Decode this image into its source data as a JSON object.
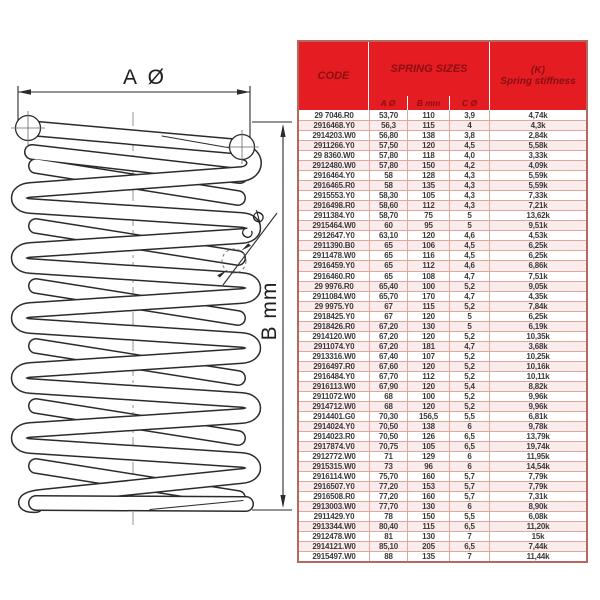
{
  "colors": {
    "header_red": "#e51c21",
    "header_text_maroon": "#8a0f12",
    "table_border": "#b4685f",
    "row_stripe_pink": "#fbecec",
    "grid_line_pink": "#dfa79f",
    "line_color": "#2b2b2b"
  },
  "diagram": {
    "a_label": "A Ø",
    "b_label": "B mm",
    "c_label": "C Ø"
  },
  "table": {
    "header": {
      "code": "CODE",
      "sizes": "SPRING SIZES",
      "stiffness_line1": "(K)",
      "stiffness_line2": "Spring stiffness"
    },
    "subheader": {
      "a": "A Ø",
      "b": "B mm",
      "c": "C Ø"
    },
    "rows": [
      {
        "code": "29 7046.R0",
        "a": "53,70",
        "b": "110",
        "c": "3,9",
        "k": "4,74k"
      },
      {
        "code": "2916468.Y0",
        "a": "56,3",
        "b": "115",
        "c": "4",
        "k": "4,3k"
      },
      {
        "code": "2914203.W0",
        "a": "56,80",
        "b": "138",
        "c": "3,8",
        "k": "2,84k"
      },
      {
        "code": "2911266.Y0",
        "a": "57,50",
        "b": "120",
        "c": "4,5",
        "k": "5,58k"
      },
      {
        "code": "29 8360.W0",
        "a": "57,80",
        "b": "118",
        "c": "4,0",
        "k": "3,33k"
      },
      {
        "code": "2912480.W0",
        "a": "57,80",
        "b": "150",
        "c": "4,2",
        "k": "4,09k"
      },
      {
        "code": "2916464.Y0",
        "a": "58",
        "b": "128",
        "c": "4,3",
        "k": "5,59k"
      },
      {
        "code": "2916465.R0",
        "a": "58",
        "b": "135",
        "c": "4,3",
        "k": "5,59k"
      },
      {
        "code": "2915553.Y0",
        "a": "58,30",
        "b": "105",
        "c": "4,3",
        "k": "7,33k"
      },
      {
        "code": "2916498.R0",
        "a": "58,60",
        "b": "112",
        "c": "4,3",
        "k": "7,21k"
      },
      {
        "code": "2911384.Y0",
        "a": "58,70",
        "b": "75",
        "c": "5",
        "k": "13,62k"
      },
      {
        "code": "2915464.W0",
        "a": "60",
        "b": "95",
        "c": "5",
        "k": "9,51k"
      },
      {
        "code": "2912647.Y0",
        "a": "63,10",
        "b": "120",
        "c": "4,6",
        "k": "4,53k"
      },
      {
        "code": "2911390.B0",
        "a": "65",
        "b": "106",
        "c": "4,5",
        "k": "6,25k"
      },
      {
        "code": "2911478.W0",
        "a": "65",
        "b": "116",
        "c": "4,5",
        "k": "6,25k"
      },
      {
        "code": "2916459.Y0",
        "a": "65",
        "b": "112",
        "c": "4,6",
        "k": "6,86k"
      },
      {
        "code": "2916460.R0",
        "a": "65",
        "b": "108",
        "c": "4,7",
        "k": "7,51k"
      },
      {
        "code": "29 9976.R0",
        "a": "65,40",
        "b": "100",
        "c": "5,2",
        "k": "9,05k"
      },
      {
        "code": "2911084.W0",
        "a": "65,70",
        "b": "170",
        "c": "4,7",
        "k": "4,35k"
      },
      {
        "code": "29 9975.Y0",
        "a": "67",
        "b": "115",
        "c": "5,2",
        "k": "7,84k"
      },
      {
        "code": "2918425.Y0",
        "a": "67",
        "b": "120",
        "c": "5",
        "k": "6,25k"
      },
      {
        "code": "2918426.R0",
        "a": "67,20",
        "b": "130",
        "c": "5",
        "k": "6,19k"
      },
      {
        "code": "2914120.W0",
        "a": "67,20",
        "b": "120",
        "c": "5,2",
        "k": "10,35k"
      },
      {
        "code": "2911074.Y0",
        "a": "67,20",
        "b": "181",
        "c": "4,7",
        "k": "3,68k"
      },
      {
        "code": "2913316.W0",
        "a": "67,40",
        "b": "107",
        "c": "5,2",
        "k": "10,25k"
      },
      {
        "code": "2916497.R0",
        "a": "67,60",
        "b": "120",
        "c": "5,2",
        "k": "10,16k"
      },
      {
        "code": "2916484.Y0",
        "a": "67,70",
        "b": "112",
        "c": "5,2",
        "k": "10,11k"
      },
      {
        "code": "2916113.W0",
        "a": "67,90",
        "b": "120",
        "c": "5,4",
        "k": "8,82k"
      },
      {
        "code": "2911072.W0",
        "a": "68",
        "b": "100",
        "c": "5,2",
        "k": "9,96k"
      },
      {
        "code": "2914712.W0",
        "a": "68",
        "b": "120",
        "c": "5,2",
        "k": "9,96k"
      },
      {
        "code": "2914401.G0",
        "a": "70,30",
        "b": "156,5",
        "c": "5,5",
        "k": "6,81k"
      },
      {
        "code": "2914024.Y0",
        "a": "70,50",
        "b": "138",
        "c": "6",
        "k": "9,78k"
      },
      {
        "code": "2914023.R0",
        "a": "70,50",
        "b": "126",
        "c": "6,5",
        "k": "13,79k"
      },
      {
        "code": "2917874.V0",
        "a": "70,75",
        "b": "105",
        "c": "6,5",
        "k": "19,74k"
      },
      {
        "code": "2912772.W0",
        "a": "71",
        "b": "129",
        "c": "6",
        "k": "11,95k"
      },
      {
        "code": "2915315.W0",
        "a": "73",
        "b": "96",
        "c": "6",
        "k": "14,54k"
      },
      {
        "code": "2916114.W0",
        "a": "75,70",
        "b": "160",
        "c": "5,7",
        "k": "7,79k"
      },
      {
        "code": "2916507.Y0",
        "a": "77,20",
        "b": "153",
        "c": "5,7",
        "k": "7,79k"
      },
      {
        "code": "2916508.R0",
        "a": "77,20",
        "b": "160",
        "c": "5,7",
        "k": "7,31k"
      },
      {
        "code": "2913003.W0",
        "a": "77,70",
        "b": "130",
        "c": "6",
        "k": "8,90k"
      },
      {
        "code": "2911429.Y0",
        "a": "78",
        "b": "150",
        "c": "5,5",
        "k": "6,08k"
      },
      {
        "code": "2913344.W0",
        "a": "80,40",
        "b": "115",
        "c": "6,5",
        "k": "11,20k"
      },
      {
        "code": "2912478.W0",
        "a": "81",
        "b": "130",
        "c": "7",
        "k": "15k"
      },
      {
        "code": "2914121.W0",
        "a": "85,10",
        "b": "205",
        "c": "6,5",
        "k": "7,44k"
      },
      {
        "code": "2915497.W0",
        "a": "88",
        "b": "135",
        "c": "7",
        "k": "11,44k"
      }
    ]
  }
}
